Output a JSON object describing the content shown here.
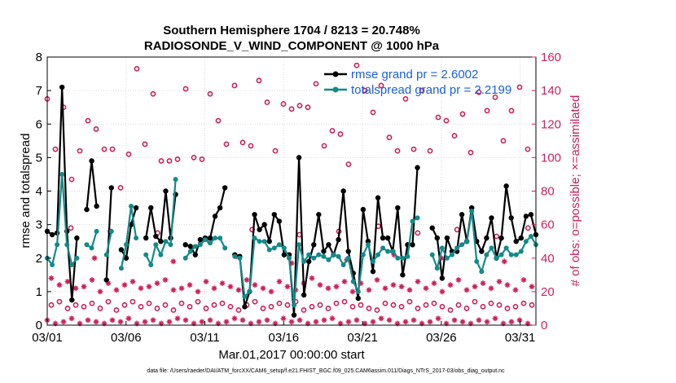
{
  "chart_data": {
    "type": "line",
    "title": "Southern Hemisphere 1704 / 8213 = 20.748%",
    "subtitle": "RADIOSONDE_V_WIND_COMPONENT @ 1000 hPa",
    "xlabel": "Mar.01,2017 00:00:00 start",
    "ylabel": "rmse and totalspread",
    "ylabel_right": "# of obs: o=possible; ×=assimilated",
    "footer": "data file: /Users/raeder/DAI/ATM_forcXX/CAM6_setup/f.e21.FHIST_BGC.f09_025.CAM6assim.011/Diags_NTrS_2017-03/obs_diag_output.nc",
    "xlim": [
      0,
      31
    ],
    "ylim": [
      0,
      8
    ],
    "ylim_right": [
      0,
      160
    ],
    "x_ticks": [
      0,
      5,
      10,
      15,
      20,
      25,
      30
    ],
    "x_tick_labels": [
      "03/01",
      "03/06",
      "03/11",
      "03/16",
      "03/21",
      "03/26",
      "03/31"
    ],
    "y_ticks": [
      0,
      1,
      2,
      3,
      4,
      5,
      6,
      7,
      8
    ],
    "y_tick_labels": [
      "0",
      "1",
      "2",
      "3",
      "4",
      "5",
      "6",
      "7",
      "8"
    ],
    "y_right_ticks": [
      0,
      20,
      40,
      60,
      80,
      100,
      120,
      140,
      160
    ],
    "y_right_tick_labels": [
      "0",
      "20",
      "40",
      "60",
      "80",
      "100",
      "120",
      "140",
      "160"
    ],
    "legend_position": "top-right",
    "colors": {
      "rmse": "#000000",
      "totalspread": "#138a8a",
      "obs": "#cc1f5a",
      "legend_text": "#1a5fe0"
    },
    "series": [
      {
        "name": "rmse",
        "legend": "rmse grand pr = 2.6002",
        "color": "#000000",
        "values": [
          2.8,
          2.7,
          2.75,
          7.1,
          2.8,
          0.75,
          2.6,
          null,
          3.45,
          4.9,
          3.55,
          null,
          1.35,
          4.1,
          null,
          2.25,
          2.0,
          3.0,
          3.5,
          null,
          2.6,
          3.5,
          2.65,
          2.5,
          4.0,
          2.6,
          3.9,
          null,
          2.4,
          2.35,
          2.1,
          2.55,
          2.6,
          2.6,
          3.25,
          3.5,
          4.1,
          null,
          2.1,
          2.05,
          0.55,
          1.0,
          3.3,
          2.85,
          3.0,
          2.5,
          3.3,
          3.1,
          2.1,
          2.1,
          0.3,
          5.0,
          0.9,
          1.9,
          2.4,
          3.3,
          2.2,
          2.4,
          2.1,
          2.55,
          4.0,
          2.2,
          1.55,
          0.8,
          3.45,
          2.5,
          1.6,
          3.8,
          2.6,
          2.6,
          2.2,
          3.5,
          1.5,
          2.4,
          2.4,
          4.7,
          null,
          null,
          2.9,
          2.6,
          1.4,
          2.6,
          2.2,
          2.2,
          3.3,
          2.5,
          3.5,
          2.5,
          2.2,
          2.6,
          3.2,
          2.0,
          2.6,
          4.15,
          3.2,
          2.5,
          2.6,
          3.25,
          3.3,
          2.7
        ]
      },
      {
        "name": "totalspread",
        "legend": "totalspread grand pr = 2.2199",
        "color": "#138a8a",
        "values": [
          2.0,
          1.8,
          2.4,
          4.5,
          2.4,
          1.8,
          2.0,
          null,
          2.4,
          2.3,
          2.8,
          null,
          2.1,
          2.8,
          null,
          1.7,
          2.4,
          3.55,
          2.6,
          null,
          2.1,
          1.8,
          2.4,
          2.1,
          2.5,
          2.4,
          4.35,
          null,
          2.0,
          2.2,
          2.35,
          2.4,
          2.55,
          2.45,
          2.6,
          2.6,
          2.3,
          null,
          2.05,
          2.0,
          0.85,
          1.0,
          2.6,
          2.5,
          2.5,
          2.25,
          2.3,
          2.4,
          2.3,
          2.0,
          0.6,
          2.4,
          1.9,
          2.1,
          2.0,
          2.1,
          2.05,
          1.95,
          2.1,
          2.05,
          1.8,
          2.0,
          1.3,
          1.0,
          2.1,
          2.4,
          1.9,
          2.1,
          2.3,
          2.2,
          2.2,
          2.0,
          2.0,
          2.05,
          3.1,
          3.2,
          null,
          null,
          2.1,
          1.7,
          2.3,
          2.0,
          2.1,
          2.3,
          2.4,
          2.5,
          3.4,
          1.9,
          1.6,
          2.1,
          2.3,
          2.0,
          2.1,
          2.3,
          2.1,
          2.1,
          2.2,
          2.5,
          2.65,
          2.4
        ]
      }
    ],
    "obs_possible": {
      "name": "possible",
      "marker": "o",
      "color": "#cc1f5a",
      "high": [
        135,
        105,
        130,
        87,
        104,
        122,
        117,
        105,
        105,
        82,
        102,
        153,
        108,
        138,
        98,
        98,
        99,
        141,
        100,
        99,
        138,
        122,
        108,
        143,
        109,
        107,
        146,
        133,
        104,
        132,
        129,
        131,
        130,
        144,
        107,
        116,
        114,
        96,
        155,
        140,
        127,
        143,
        112,
        104,
        135,
        105,
        140,
        104,
        124,
        122,
        113,
        126,
        103,
        139,
        128,
        136,
        110,
        128,
        142,
        105
      ],
      "low": [
        12,
        14,
        10,
        12,
        11,
        13,
        10,
        14,
        9,
        12,
        14,
        11,
        13,
        10,
        12,
        9,
        13,
        11,
        14,
        10,
        12,
        13,
        11,
        9,
        12,
        14,
        10,
        11,
        13,
        12,
        14,
        9,
        11,
        12,
        10,
        13,
        14,
        11,
        12,
        10,
        9,
        13,
        12,
        11,
        14,
        10,
        12,
        13,
        11,
        9,
        12,
        10,
        14,
        11,
        13,
        12,
        10,
        11,
        13,
        12
      ],
      "mid": [
        58,
        56,
        55,
        50,
        57,
        54,
        56,
        59,
        55,
        57,
        53,
        58
      ]
    },
    "obs_assimilated": {
      "name": "assimilated",
      "marker": "*",
      "color": "#cc1f5a",
      "high": [
        28,
        24,
        26,
        22,
        23,
        27,
        20,
        25,
        21,
        24,
        26,
        22,
        23,
        25,
        27,
        21,
        22,
        24,
        20,
        26,
        22,
        25,
        23,
        21,
        27,
        24,
        22,
        20,
        26,
        23,
        21,
        25,
        28,
        24,
        22,
        23,
        26,
        20,
        25,
        21,
        27,
        22,
        24,
        23,
        21,
        26,
        22,
        25,
        20,
        24,
        27,
        21,
        23,
        25,
        22,
        26,
        24,
        21,
        27,
        23
      ],
      "low": [
        3,
        1,
        2,
        4,
        1,
        3,
        2,
        1,
        3,
        2,
        4,
        1,
        2,
        3,
        1,
        2,
        4,
        3,
        1,
        2,
        3,
        1,
        2,
        4,
        3,
        1,
        2,
        3,
        1,
        4,
        2,
        3,
        1,
        2,
        3,
        4,
        1,
        2,
        3,
        1,
        2,
        4,
        3,
        1,
        2,
        3,
        1,
        2,
        4,
        1,
        3,
        2,
        1,
        3,
        2,
        4,
        1,
        2,
        3,
        1
      ],
      "mid": [
        40,
        38,
        41,
        37,
        39,
        42,
        40,
        38
      ]
    }
  }
}
